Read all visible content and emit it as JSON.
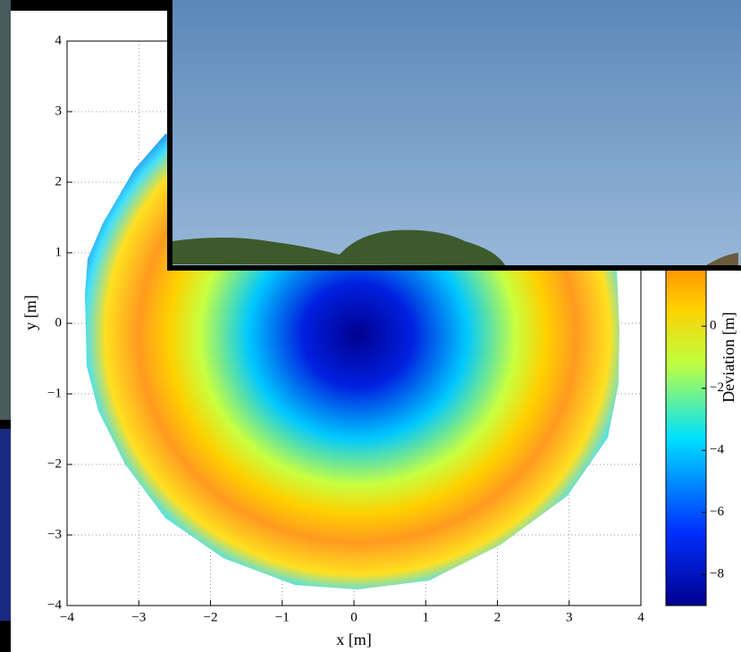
{
  "chart_data": {
    "type": "surface",
    "xlabel": "x [m]",
    "ylabel": "y [m]",
    "colorbar_label": "Deviation [m]",
    "xlim": [
      -4,
      4
    ],
    "ylim": [
      -4,
      4
    ],
    "xticks": [
      {
        "value": -4,
        "label": "−4"
      },
      {
        "value": -3,
        "label": "−3"
      },
      {
        "value": -2,
        "label": "−2"
      },
      {
        "value": -1,
        "label": "−1"
      },
      0,
      1,
      2,
      3,
      4
    ],
    "yticks": [
      {
        "value": -4,
        "label": "−4"
      },
      {
        "value": -3,
        "label": "−3"
      },
      {
        "value": -2,
        "label": "−2"
      },
      {
        "value": -1,
        "label": "−1"
      },
      0,
      1,
      2,
      3,
      4
    ],
    "clim": [
      -9,
      3
    ],
    "cticks": [
      {
        "value": -8,
        "label": "−8"
      },
      {
        "value": -6,
        "label": "−6"
      },
      {
        "value": -4,
        "label": "−4"
      },
      {
        "value": -2,
        "label": "−2"
      },
      0
    ],
    "grid": true
  }
}
